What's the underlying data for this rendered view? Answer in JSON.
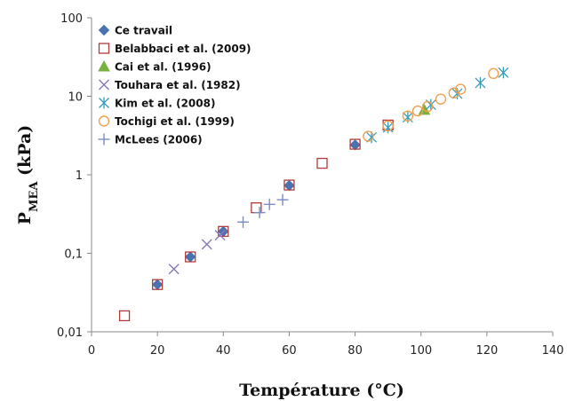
{
  "chart_data": {
    "type": "scatter",
    "xlabel": "Température (°C)",
    "ylabel": {
      "main": "P",
      "sub": "MEA",
      "rest": " (kPa)"
    },
    "xlim": [
      0,
      140
    ],
    "ylim": [
      0.01,
      100
    ],
    "yscale": "log",
    "xticks": [
      0,
      20,
      40,
      60,
      80,
      100,
      120,
      140
    ],
    "yticks": [
      {
        "value": 0.01,
        "label": "0,01"
      },
      {
        "value": 0.1,
        "label": "0,1"
      },
      {
        "value": 1,
        "label": "1"
      },
      {
        "value": 10,
        "label": "10"
      },
      {
        "value": 100,
        "label": "100"
      }
    ],
    "grid": false,
    "legend_position": "top-left",
    "series": [
      {
        "name": "Ce travail",
        "marker": "diamond",
        "color": "#4a72b0",
        "points": [
          [
            20,
            0.04
          ],
          [
            30,
            0.09
          ],
          [
            40,
            0.19
          ],
          [
            60,
            0.73
          ],
          [
            80,
            2.4
          ]
        ]
      },
      {
        "name": "Belabbaci et al. (2009)",
        "marker": "square-open",
        "color": "#b03a3a",
        "points": [
          [
            10,
            0.016
          ],
          [
            20,
            0.04
          ],
          [
            30,
            0.09
          ],
          [
            40,
            0.19
          ],
          [
            50,
            0.38
          ],
          [
            60,
            0.74
          ],
          [
            70,
            1.4
          ],
          [
            80,
            2.45
          ],
          [
            90,
            4.3
          ]
        ]
      },
      {
        "name": "Cai et al. (1996)",
        "marker": "triangle",
        "color": "#7ab040",
        "points": [
          [
            101,
            6.7
          ]
        ]
      },
      {
        "name": "Touhara et al. (1982)",
        "marker": "x",
        "color": "#8a78b8",
        "points": [
          [
            25,
            0.063
          ],
          [
            35,
            0.13
          ],
          [
            39,
            0.17
          ]
        ]
      },
      {
        "name": "Kim et al. (2008)",
        "marker": "asterisk",
        "color": "#3a9cb8",
        "points": [
          [
            85,
            3.0
          ],
          [
            90,
            4.0
          ],
          [
            96,
            5.4
          ],
          [
            103,
            7.8
          ],
          [
            111,
            10.8
          ],
          [
            118,
            14.8
          ],
          [
            125,
            20
          ]
        ]
      },
      {
        "name": "Tochigi et al. (1999)",
        "marker": "circle-open",
        "color": "#f0a050",
        "points": [
          [
            84,
            3.1
          ],
          [
            90,
            4.2
          ],
          [
            96,
            5.6
          ],
          [
            99,
            6.5
          ],
          [
            102,
            7.4
          ],
          [
            106,
            9.2
          ],
          [
            110,
            11
          ],
          [
            112,
            12.3
          ],
          [
            122,
            19.5
          ]
        ]
      },
      {
        "name": "McLees (2006)",
        "marker": "plus",
        "color": "#7a8cc8",
        "points": [
          [
            46,
            0.25
          ],
          [
            51,
            0.33
          ],
          [
            54,
            0.42
          ],
          [
            58,
            0.48
          ]
        ]
      }
    ]
  }
}
